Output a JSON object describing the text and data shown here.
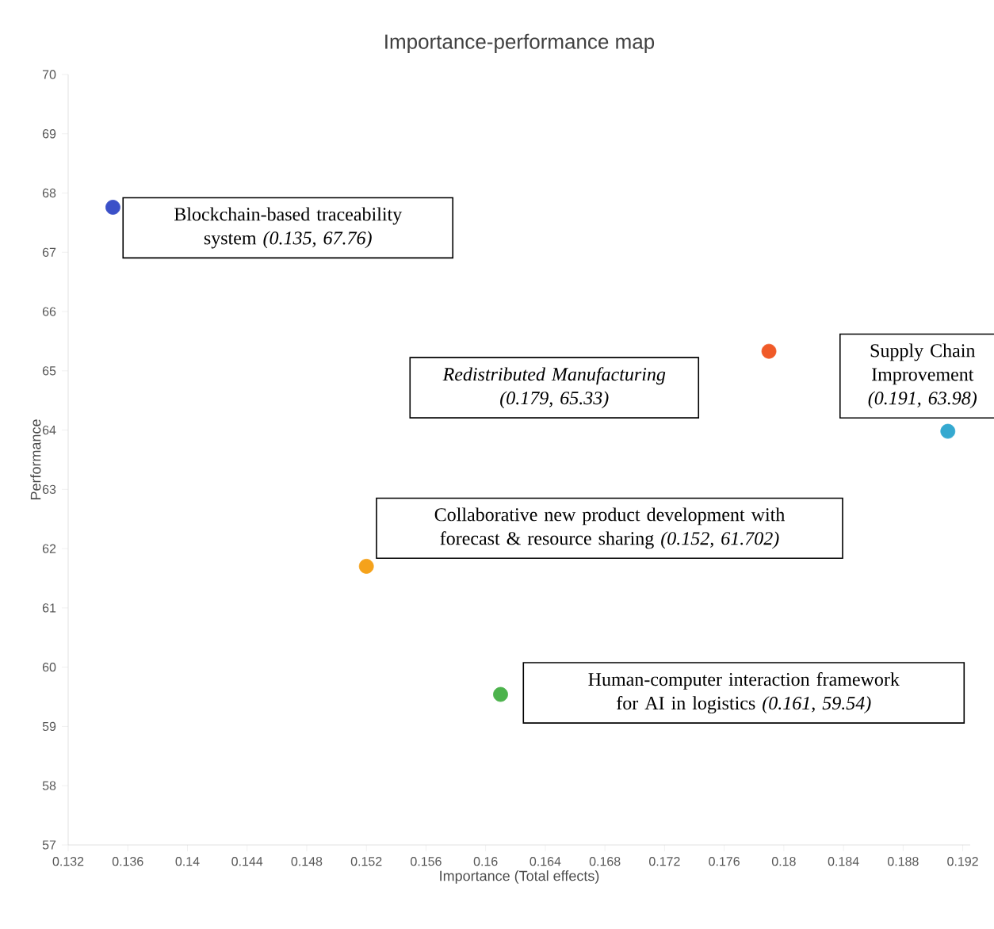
{
  "chart_data": {
    "type": "scatter",
    "title": "Importance-performance map",
    "xlabel": "Importance (Total effects)",
    "ylabel": "Performance",
    "x": [
      0.135,
      0.179,
      0.191,
      0.152,
      0.161
    ],
    "values": [
      67.76,
      65.33,
      63.98,
      61.702,
      59.54
    ],
    "colors": [
      "#3b50c8",
      "#f05a28",
      "#35a9d0",
      "#f5a21b",
      "#4cb34c"
    ],
    "xlim": [
      0.132,
      0.1925
    ],
    "ylim": [
      57,
      70
    ],
    "xticks": [
      0.132,
      0.136,
      0.14,
      0.144,
      0.148,
      0.152,
      0.156,
      0.16,
      0.164,
      0.168,
      0.172,
      0.176,
      0.18,
      0.184,
      0.188,
      0.192
    ],
    "yticks": [
      57,
      58,
      59,
      60,
      61,
      62,
      63,
      64,
      65,
      66,
      67,
      68,
      69,
      70
    ],
    "grid": false,
    "annotations": [
      "Blockchain-based traceability system *(0.135, 67.76)*",
      "*Redistributed Manufacturing (0.179, 65.33)*",
      "Supply Chain Improvement *(0.191, 63.98)*",
      "Collaborative new product development with forecast & resource sharing *(0.152, 61.702)*",
      "Human-computer interaction framework for AI in logistics *(0.161, 59.54)*"
    ]
  }
}
